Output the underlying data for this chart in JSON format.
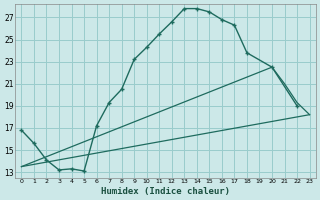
{
  "xlabel": "Humidex (Indice chaleur)",
  "bg_color": "#cce8e8",
  "grid_color": "#99cccc",
  "line_color": "#1e6b5e",
  "xlim": [
    -0.5,
    23.5
  ],
  "ylim": [
    12.5,
    28.2
  ],
  "xticks": [
    0,
    1,
    2,
    3,
    4,
    5,
    6,
    7,
    8,
    9,
    10,
    11,
    12,
    13,
    14,
    15,
    16,
    17,
    18,
    19,
    20,
    21,
    22,
    23
  ],
  "yticks": [
    13,
    15,
    17,
    19,
    21,
    23,
    25,
    27
  ],
  "line1_x": [
    0,
    1,
    2,
    3,
    4,
    5,
    6,
    7,
    8,
    9,
    10,
    11,
    12,
    13,
    14,
    15,
    16,
    17,
    18,
    20,
    22
  ],
  "line1_y": [
    16.8,
    15.6,
    14.1,
    13.2,
    13.3,
    13.1,
    17.2,
    19.3,
    20.5,
    23.2,
    24.3,
    25.5,
    26.6,
    27.8,
    27.8,
    27.5,
    26.8,
    26.3,
    23.8,
    22.5,
    19.0
  ],
  "line2_x": [
    0,
    23
  ],
  "line2_y": [
    13.5,
    18.2
  ],
  "line3_x": [
    0,
    20,
    21,
    22,
    23
  ],
  "line3_y": [
    13.5,
    22.5,
    21.0,
    19.3,
    18.2
  ],
  "figsize": [
    3.2,
    2.0
  ],
  "dpi": 100
}
